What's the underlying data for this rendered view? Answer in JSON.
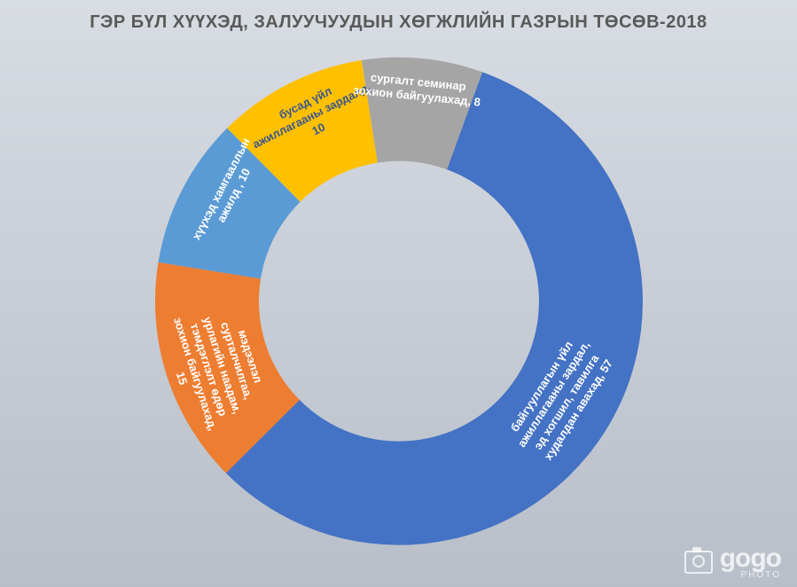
{
  "chart": {
    "type": "donut",
    "title": "ГЭР БҮЛ ХҮҮХЭД, ЗАЛУУЧУУДЫН ХӨГЖЛИЙН ГАЗРЫН ТӨСӨВ-2018",
    "title_fontsize": 20,
    "title_color": "#595959",
    "background_gradient": [
      "#d8dce3",
      "#b8bfc9"
    ],
    "outer_radius": 275,
    "inner_radius": 158,
    "slices": [
      {
        "label": "байгууллагын үйл ажиллагааны зардал, эд хогшил, тавилга худалдан авахад",
        "value": 57,
        "color": "#4472c4",
        "text_color": "#ffffff"
      },
      {
        "label": "мэдээлэл сурталчилгаа, урлагийн наадам, тэмдэглэлт өдөр зохион байгуулахад",
        "value": 15,
        "color": "#ed7d31",
        "text_color": "#ffffff"
      },
      {
        "label": "хүүхэд хамгааллын ажилд ",
        "value": 10,
        "color": "#5b9bd5",
        "text_color": "#ffffff"
      },
      {
        "label": "бусад үйл ажиллагааны зардалд",
        "value": 10,
        "color": "#ffc000",
        "text_color": "#3a568f"
      },
      {
        "label": "сургалт семинар зохион байгуулахад",
        "value": 8,
        "color": "#a5a5a5",
        "text_color": "#ffffff"
      }
    ],
    "label_fontsize": 13,
    "start_angle_deg": -70
  },
  "watermark": {
    "brand": "gogo",
    "sub": "PHOTO"
  }
}
